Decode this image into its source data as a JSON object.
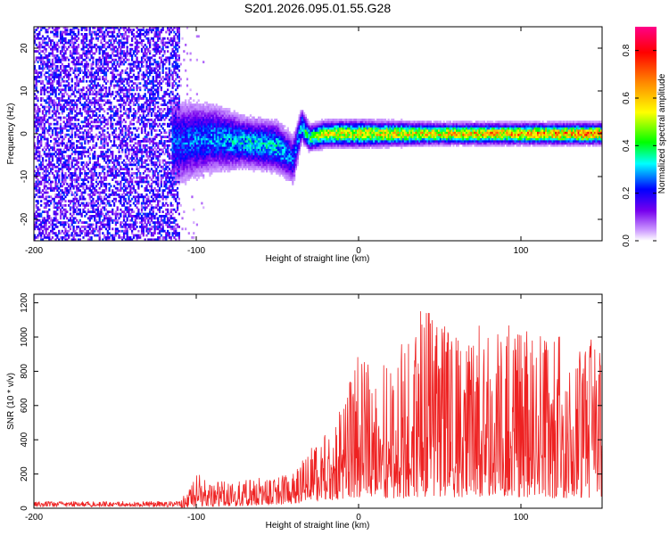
{
  "title": "S201.2026.095.01.55.G28",
  "chart_data": [
    {
      "type": "heatmap",
      "title": "S201.2026.095.01.55.G28",
      "xlabel": "Height of straight line (km)",
      "ylabel": "Frequency (Hz)",
      "xlim": [
        -200,
        150
      ],
      "ylim": [
        -25,
        25
      ],
      "xticks": [
        "-200",
        "-100",
        "0",
        "100"
      ],
      "xtick_values": [
        -200,
        -100,
        0,
        100
      ],
      "yticks": [
        "20",
        "10",
        "0",
        "-10",
        "-20"
      ],
      "ytick_values": [
        20,
        10,
        0,
        -10,
        -20
      ],
      "ridge": {
        "description_points_x": [
          -110,
          -90,
          -70,
          -50,
          -40,
          -35,
          -30,
          -20,
          0,
          50,
          100,
          150
        ],
        "center_freq": [
          -2,
          -1,
          -2,
          -3,
          -6,
          2,
          -1,
          0,
          0,
          0,
          0,
          0
        ],
        "halfwidth": [
          5,
          4,
          3,
          3,
          3,
          2,
          1.5,
          1.5,
          1.5,
          1.2,
          1.2,
          1.2
        ],
        "peak_amplitude": [
          0.3,
          0.35,
          0.4,
          0.4,
          0.3,
          0.4,
          0.55,
          0.65,
          0.7,
          0.75,
          0.8,
          0.85
        ]
      },
      "noise_region": {
        "x_range": [
          -200,
          -110
        ],
        "amplitude_range": [
          0.0,
          0.25
        ]
      },
      "colorbar": {
        "label": "Normalized spectral amplitude",
        "range": [
          0.0,
          0.9
        ],
        "ticks": [
          "0.0",
          "0.2",
          "0.4",
          "0.6",
          "0.8"
        ],
        "tick_values": [
          0.0,
          0.2,
          0.4,
          0.6,
          0.8
        ],
        "colors": [
          "#ffffff",
          "#cc99ff",
          "#7700ee",
          "#0000ff",
          "#00ffff",
          "#00ff00",
          "#ffff00",
          "#ff8800",
          "#ff0000",
          "#ff0088"
        ]
      }
    },
    {
      "type": "line",
      "xlabel": "Height of straight line (km)",
      "ylabel": "SNR (10 * v/v)",
      "xlim": [
        -200,
        150
      ],
      "ylim": [
        0,
        1250
      ],
      "xticks": [
        "-200",
        "-100",
        "0",
        "100"
      ],
      "xtick_values": [
        -200,
        -100,
        0,
        100
      ],
      "yticks": [
        "0",
        "200",
        "400",
        "600",
        "800",
        "1000",
        "1200"
      ],
      "ytick_values": [
        0,
        200,
        400,
        600,
        800,
        1000,
        1200
      ],
      "series": [
        {
          "name": "SNR",
          "color": "#ee2222",
          "envelope_x": [
            -200,
            -110,
            -100,
            -80,
            -60,
            -40,
            -30,
            -20,
            -10,
            0,
            10,
            20,
            30,
            40,
            50,
            60,
            80,
            100,
            120,
            140,
            150
          ],
          "envelope_max": [
            40,
            40,
            200,
            150,
            180,
            200,
            350,
            450,
            600,
            900,
            800,
            900,
            1000,
            1200,
            1100,
            1000,
            1100,
            1050,
            1000,
            1050,
            900
          ],
          "baseline": [
            15,
            15,
            25,
            40,
            60,
            80,
            120,
            150,
            180,
            200,
            200,
            200,
            200,
            220,
            220,
            220,
            220,
            220,
            200,
            200,
            200
          ]
        }
      ]
    }
  ]
}
